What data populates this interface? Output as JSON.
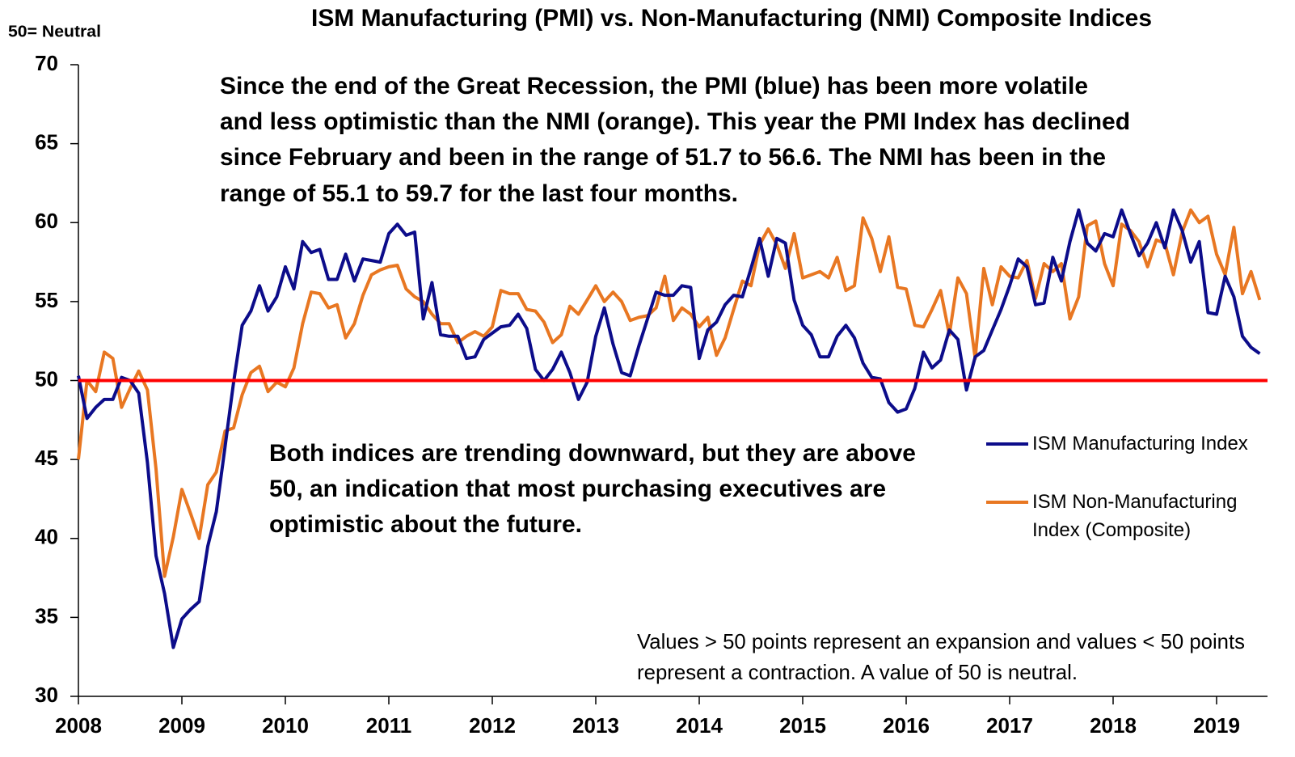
{
  "chart_data": {
    "type": "line",
    "title": "ISM Manufacturing (PMI) vs. Non-Manufacturing (NMI) Composite Indices",
    "y_label": "50= Neutral",
    "annotations": [
      [
        "Since the end of the Great Recession, the PMI (blue) has been more volatile",
        "and less optimistic than the NMI (orange). This year the PMI Index has declined",
        "since February and been in the range of 51.7 to 56.6. The NMI has been in the",
        "range of 55.1 to 59.7 for the last four months."
      ],
      [
        "Both indices are trending downward, but they are above",
        "50, an indication that most purchasing executives are",
        "optimistic about the future."
      ],
      [
        "Values > 50 points represent an expansion and values < 50 points",
        "represent a contraction. A value of 50 is neutral."
      ]
    ],
    "xlim": [
      2008,
      2019.5
    ],
    "xticks": [
      2008,
      2009,
      2010,
      2011,
      2012,
      2013,
      2014,
      2015,
      2016,
      2017,
      2018,
      2019
    ],
    "ylim": [
      30,
      70
    ],
    "yticks": [
      30,
      35,
      40,
      45,
      50,
      55,
      60,
      65,
      70
    ],
    "reference_line": {
      "value": 50,
      "color": "#ff0000"
    },
    "x": [
      2008.0,
      2008.083,
      2008.167,
      2008.25,
      2008.333,
      2008.417,
      2008.5,
      2008.583,
      2008.667,
      2008.75,
      2008.833,
      2008.917,
      2009.0,
      2009.083,
      2009.167,
      2009.25,
      2009.333,
      2009.417,
      2009.5,
      2009.583,
      2009.667,
      2009.75,
      2009.833,
      2009.917,
      2010.0,
      2010.083,
      2010.167,
      2010.25,
      2010.333,
      2010.417,
      2010.5,
      2010.583,
      2010.667,
      2010.75,
      2010.833,
      2010.917,
      2011.0,
      2011.083,
      2011.167,
      2011.25,
      2011.333,
      2011.417,
      2011.5,
      2011.583,
      2011.667,
      2011.75,
      2011.833,
      2011.917,
      2012.0,
      2012.083,
      2012.167,
      2012.25,
      2012.333,
      2012.417,
      2012.5,
      2012.583,
      2012.667,
      2012.75,
      2012.833,
      2012.917,
      2013.0,
      2013.083,
      2013.167,
      2013.25,
      2013.333,
      2013.417,
      2013.5,
      2013.583,
      2013.667,
      2013.75,
      2013.833,
      2013.917,
      2014.0,
      2014.083,
      2014.167,
      2014.25,
      2014.333,
      2014.417,
      2014.5,
      2014.583,
      2014.667,
      2014.75,
      2014.833,
      2014.917,
      2015.0,
      2015.083,
      2015.167,
      2015.25,
      2015.333,
      2015.417,
      2015.5,
      2015.583,
      2015.667,
      2015.75,
      2015.833,
      2015.917,
      2016.0,
      2016.083,
      2016.167,
      2016.25,
      2016.333,
      2016.417,
      2016.5,
      2016.583,
      2016.667,
      2016.75,
      2016.833,
      2016.917,
      2017.0,
      2017.083,
      2017.167,
      2017.25,
      2017.333,
      2017.417,
      2017.5,
      2017.583,
      2017.667,
      2017.75,
      2017.833,
      2017.917,
      2018.0,
      2018.083,
      2018.167,
      2018.25,
      2018.333,
      2018.417,
      2018.5,
      2018.583,
      2018.667,
      2018.75,
      2018.833,
      2018.917,
      2019.0,
      2019.083,
      2019.167,
      2019.25,
      2019.333,
      2019.417
    ],
    "series": [
      {
        "name": "ISM Manufacturing Index",
        "color": "#0c0c8a",
        "values": [
          50.3,
          47.6,
          48.3,
          48.8,
          48.8,
          50.2,
          50.0,
          49.2,
          44.8,
          38.9,
          36.5,
          33.1,
          34.9,
          35.5,
          36.0,
          39.5,
          41.7,
          45.8,
          49.9,
          53.5,
          54.4,
          56.0,
          54.4,
          55.3,
          57.2,
          55.8,
          58.8,
          58.1,
          58.3,
          56.4,
          56.4,
          58.0,
          56.3,
          57.7,
          57.6,
          57.5,
          59.3,
          59.9,
          59.2,
          59.4,
          53.9,
          56.2,
          52.9,
          52.8,
          52.8,
          51.4,
          51.5,
          52.6,
          53.0,
          53.4,
          53.5,
          54.2,
          53.3,
          50.7,
          50.0,
          50.7,
          51.8,
          50.5,
          48.8,
          49.9,
          52.8,
          54.6,
          52.3,
          50.5,
          50.3,
          52.2,
          53.9,
          55.6,
          55.4,
          55.4,
          56.0,
          55.9,
          51.4,
          53.2,
          53.7,
          54.8,
          55.4,
          55.3,
          57.1,
          59.0,
          56.6,
          59.0,
          58.7,
          55.1,
          53.5,
          52.9,
          51.5,
          51.5,
          52.8,
          53.5,
          52.7,
          51.1,
          50.2,
          50.1,
          48.6,
          48.0,
          48.2,
          49.5,
          51.8,
          50.8,
          51.3,
          53.2,
          52.6,
          49.4,
          51.5,
          51.9,
          53.2,
          54.5,
          56.0,
          57.7,
          57.2,
          54.8,
          54.9,
          57.8,
          56.3,
          58.8,
          60.8,
          58.7,
          58.2,
          59.3,
          59.1,
          60.8,
          59.3,
          57.9,
          58.7,
          60.0,
          58.4,
          60.8,
          59.5,
          57.5,
          58.8,
          54.3,
          54.2,
          56.6,
          55.3,
          52.8,
          52.1,
          51.7
        ]
      },
      {
        "name": "ISM Non-Manufacturing Index (Composite)",
        "color": "#e87722",
        "values": [
          45.0,
          50.0,
          49.3,
          51.8,
          51.4,
          48.3,
          49.5,
          50.6,
          49.4,
          44.4,
          37.6,
          40.1,
          43.1,
          41.6,
          40.0,
          43.4,
          44.2,
          46.8,
          47.0,
          49.1,
          50.5,
          50.9,
          49.3,
          49.9,
          49.6,
          50.8,
          53.6,
          55.6,
          55.5,
          54.6,
          54.8,
          52.7,
          53.6,
          55.4,
          56.7,
          57.0,
          57.2,
          57.3,
          55.8,
          55.3,
          55.0,
          54.2,
          53.6,
          53.6,
          52.4,
          52.8,
          53.1,
          52.8,
          53.4,
          55.7,
          55.5,
          55.5,
          54.5,
          54.4,
          53.7,
          52.4,
          52.9,
          54.7,
          54.2,
          55.1,
          56.0,
          55.0,
          55.6,
          55.0,
          53.8,
          54.0,
          54.1,
          54.6,
          56.6,
          53.8,
          54.6,
          54.2,
          53.4,
          54.0,
          51.6,
          52.7,
          54.5,
          56.3,
          56.0,
          58.6,
          59.6,
          58.6,
          57.1,
          59.3,
          56.5,
          56.7,
          56.9,
          56.5,
          57.8,
          55.7,
          56.0,
          60.3,
          59.0,
          56.9,
          59.1,
          55.9,
          55.8,
          53.5,
          53.4,
          54.5,
          55.7,
          52.9,
          56.5,
          55.5,
          51.4,
          57.1,
          54.8,
          57.2,
          56.6,
          56.5,
          57.6,
          55.2,
          57.4,
          56.9,
          57.4,
          53.9,
          55.3,
          59.8,
          60.1,
          57.4,
          56.0,
          59.9,
          59.5,
          58.8,
          57.2,
          58.9,
          58.7,
          56.7,
          59.4,
          60.8,
          60.0,
          60.4,
          58.0,
          56.7,
          59.7,
          55.5,
          56.9,
          55.1
        ]
      }
    ]
  }
}
